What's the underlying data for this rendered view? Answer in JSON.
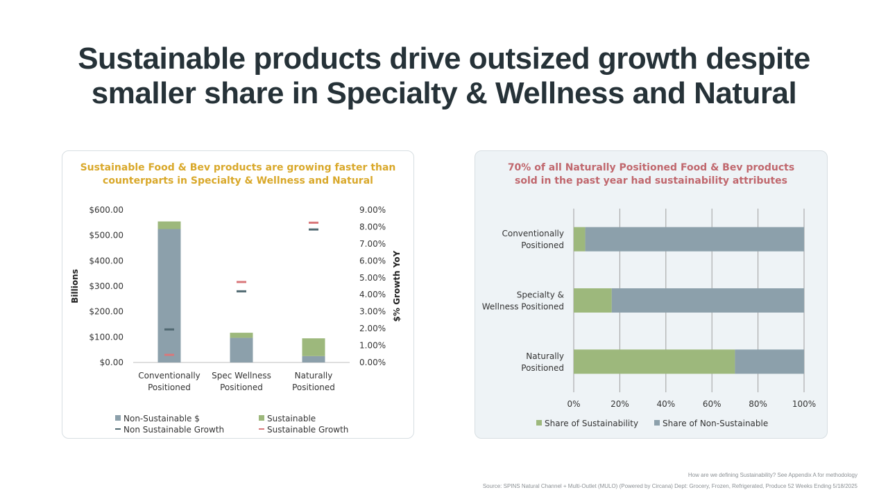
{
  "slide": {
    "title_line1": "Sustainable products drive outsized growth despite",
    "title_line2": "smaller share in Specialty & Wellness and Natural"
  },
  "footnotes": {
    "definition": "How are we defining Sustainability? See Appendix A for methodology",
    "source": "Source: SPINS Natural Channel + Multi-Outlet (MULO) (Powered by Circana)  Dept: Grocery, Frozen, Refrigerated, Produce 52 Weeks Ending 5/18/2025"
  },
  "colors": {
    "title": "#263238",
    "left_card_title": "#d9a82a",
    "right_card_title": "#c0676d",
    "non_sustainable": "#8ca0ab",
    "sustainable": "#9db87c",
    "non_sustainable_growth": "#4f6870",
    "sustainable_growth": "#d9777a"
  },
  "chart_data": [
    {
      "type": "bar",
      "stacked": true,
      "title_line1": "Sustainable Food & Bev products are growing faster than",
      "title_line2": "counterparts in Specialty & Wellness and Natural",
      "categories": [
        [
          "Conventionally",
          "Positioned"
        ],
        [
          "Spec Wellness",
          "Positioned"
        ],
        [
          "Naturally",
          "Positioned"
        ]
      ],
      "ylabel": "Billions",
      "ylabel2": "$% Growth YoY",
      "ylim": [
        0,
        600
      ],
      "yticks": [
        "$0.00",
        "$100.00",
        "$200.00",
        "$300.00",
        "$400.00",
        "$500.00",
        "$600.00"
      ],
      "ylim2": [
        0,
        9
      ],
      "yticks2": [
        "0.00%",
        "1.00%",
        "2.00%",
        "3.00%",
        "4.00%",
        "5.00%",
        "6.00%",
        "7.00%",
        "8.00%",
        "9.00%"
      ],
      "series": [
        {
          "name": "Non-Sustainable $",
          "kind": "bar",
          "axis": "left",
          "values": [
            525,
            97,
            25
          ]
        },
        {
          "name": "Sustainable",
          "kind": "bar",
          "axis": "left",
          "values": [
            30,
            20,
            70
          ]
        },
        {
          "name": "Non Sustainable Growth",
          "kind": "marker",
          "axis": "right",
          "values": [
            1.95,
            4.2,
            7.85
          ]
        },
        {
          "name": "Sustainable Growth",
          "kind": "marker",
          "axis": "right",
          "values": [
            0.45,
            4.75,
            8.25
          ]
        }
      ],
      "legend": "bottom"
    },
    {
      "type": "bar",
      "orientation": "horizontal",
      "stacked": true,
      "percent": true,
      "title_line1": "70% of all Naturally Positioned Food & Bev products",
      "title_line2": "sold in the past year had sustainability attributes",
      "categories": [
        [
          "Conventionally",
          "Positioned"
        ],
        [
          "Specialty &",
          "Wellness Positioned"
        ],
        [
          "Naturally",
          "Positioned"
        ]
      ],
      "xlim": [
        0,
        100
      ],
      "xticks": [
        "0%",
        "20%",
        "40%",
        "60%",
        "80%",
        "100%"
      ],
      "series": [
        {
          "name": "Share of Sustainability",
          "values": [
            5,
            16.5,
            70
          ]
        },
        {
          "name": "Share of Non-Sustainable",
          "values": [
            95,
            83.5,
            30
          ]
        }
      ],
      "grid": true,
      "legend": "bottom"
    }
  ]
}
